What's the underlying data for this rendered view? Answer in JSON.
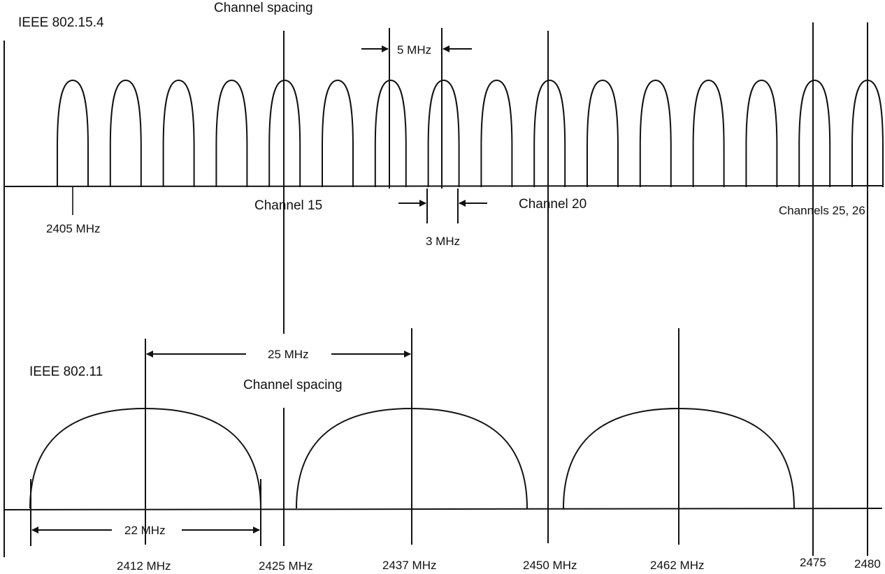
{
  "diagram": {
    "top_title": "Channel spacing",
    "zigbee": {
      "title": "IEEE 802.15.4",
      "spacing_label": "5 MHz",
      "bandwidth_label": "3 MHz",
      "start_freq_label": "2405 MHz",
      "channel_15_label": "Channel 15",
      "channel_20_label": "Channel 20",
      "channels_25_26_label": "Channels 25, 26",
      "channel_count": 16
    },
    "wifi": {
      "title": "IEEE 802.11",
      "spacing_value_label": "25 MHz",
      "spacing_text_label": "Channel spacing",
      "bandwidth_label": "22 MHz",
      "channel_count": 3
    },
    "frequency_labels": [
      "2412 MHz",
      "2425 MHz",
      "2437 MHz",
      "2450 MHz",
      "2462 MHz",
      "2475",
      "2480"
    ]
  }
}
